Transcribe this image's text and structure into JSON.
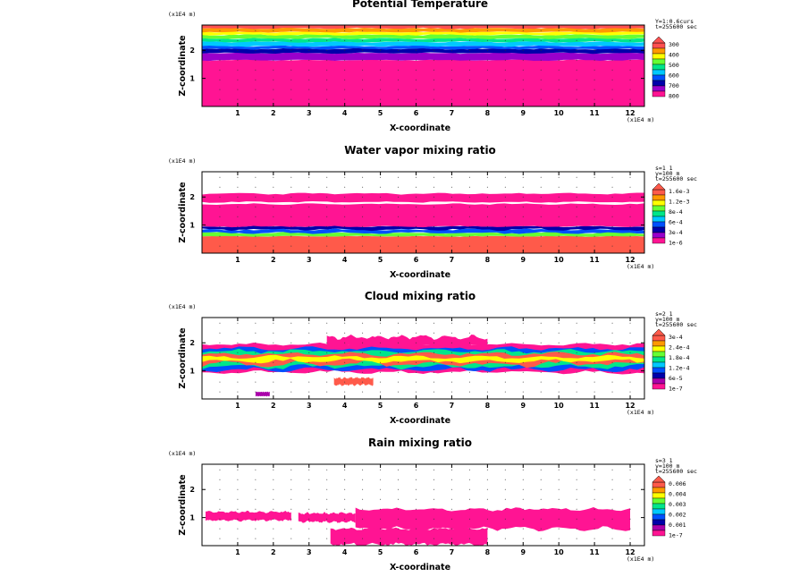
{
  "colors": {
    "cb1": [
      "#ff1493",
      "#9900cc",
      "#0000aa",
      "#0050ff",
      "#00c8ff",
      "#00e68a",
      "#66ff33",
      "#ffff00",
      "#ff9900",
      "#ff5050"
    ],
    "cb2": [
      "#ff1493",
      "#9900cc",
      "#0000aa",
      "#0050ff",
      "#00c8ff",
      "#00e68a",
      "#66ff33",
      "#ffff00",
      "#ff9900",
      "#ff5a4a"
    ],
    "cb3": [
      "#ff1493",
      "#aa00aa",
      "#0000aa",
      "#0050ff",
      "#00c8ff",
      "#00e68a",
      "#66ff33",
      "#ffff00",
      "#ff9900",
      "#ff5a4a"
    ],
    "cb4": [
      "#ff1493",
      "#aa00aa",
      "#0000aa",
      "#0050ff",
      "#00c8ff",
      "#00e68a",
      "#66ff33",
      "#ffff00",
      "#ff9900",
      "#ff5a4a"
    ]
  },
  "chart_data": [
    {
      "type": "heatmap",
      "title": "Potential Temperature",
      "xlabel": "X-coordinate",
      "ylabel": "Z-coordinate",
      "x_unit": "(x1E4 m)",
      "z_unit": "(x1E4 m)",
      "x_ticks": [
        "1",
        "2",
        "3",
        "4",
        "5",
        "6",
        "7",
        "8",
        "9",
        "10",
        "11",
        "12"
      ],
      "z_ticks": [
        "1",
        "2"
      ],
      "xlim": [
        0,
        12.4
      ],
      "zlim": [
        0,
        2.9
      ],
      "info": [
        "Y=1:0.6curs",
        "t=255600 sec"
      ],
      "colorbar_labels": [
        "300",
        "400",
        "500",
        "600",
        "700",
        "800"
      ],
      "colorbar_levels": [
        "300",
        "400",
        "500",
        "600",
        "700",
        "800"
      ]
    },
    {
      "type": "heatmap",
      "title": "Water vapor mixing ratio",
      "xlabel": "X-coordinate",
      "ylabel": "Z-coordinate",
      "x_unit": "(x1E4 m)",
      "z_unit": "(x1E4 m)",
      "x_ticks": [
        "1",
        "2",
        "3",
        "4",
        "5",
        "6",
        "7",
        "8",
        "9",
        "10",
        "11",
        "12"
      ],
      "z_ticks": [
        "1",
        "2"
      ],
      "xlim": [
        0,
        12.4
      ],
      "zlim": [
        0,
        2.9
      ],
      "info": [
        "s=1 1",
        "y=100 m",
        "t=255600 sec"
      ],
      "colorbar_labels": [
        "1.6e-3",
        "1.2e-3",
        "8e-4",
        "6e-4",
        "3e-4",
        "1e-6"
      ],
      "colorbar_levels": [
        "1e-6",
        "3e-4",
        "6e-4",
        "8e-4",
        "1.2e-3",
        "1.6e-3"
      ]
    },
    {
      "type": "heatmap",
      "title": "Cloud mixing ratio",
      "xlabel": "X-coordinate",
      "ylabel": "Z-coordinate",
      "x_unit": "(x1E4 m)",
      "z_unit": "(x1E4 m)",
      "x_ticks": [
        "1",
        "2",
        "3",
        "4",
        "5",
        "6",
        "7",
        "8",
        "9",
        "10",
        "11",
        "12"
      ],
      "z_ticks": [
        "1",
        "2"
      ],
      "xlim": [
        0,
        12.4
      ],
      "zlim": [
        0,
        2.9
      ],
      "info": [
        "s=2 1",
        "y=100 m",
        "t=255600 sec"
      ],
      "colorbar_labels": [
        "3e-4",
        "2.4e-4",
        "1.8e-4",
        "1.2e-4",
        "6e-5",
        "1e-7"
      ],
      "colorbar_levels": [
        "1e-7",
        "6e-5",
        "1.2e-4",
        "1.8e-4",
        "2.4e-4",
        "3e-4"
      ]
    },
    {
      "type": "heatmap",
      "title": "Rain mixing ratio",
      "xlabel": "X-coordinate",
      "ylabel": "Z-coordinate",
      "x_unit": "(x1E4 m)",
      "z_unit": "(x1E4 m)",
      "x_ticks": [
        "1",
        "2",
        "3",
        "4",
        "5",
        "6",
        "7",
        "8",
        "9",
        "10",
        "11",
        "12"
      ],
      "z_ticks": [
        "1",
        "2"
      ],
      "xlim": [
        0,
        12.4
      ],
      "zlim": [
        0,
        2.9
      ],
      "info": [
        "s=3 1",
        "y=100 m",
        "t=255600 sec"
      ],
      "colorbar_labels": [
        "0.006",
        "0.004",
        "0.003",
        "0.002",
        "0.001",
        "1e-7"
      ],
      "colorbar_levels": [
        "1e-7",
        "0.001",
        "0.002",
        "0.003",
        "0.004",
        "0.006"
      ]
    }
  ]
}
